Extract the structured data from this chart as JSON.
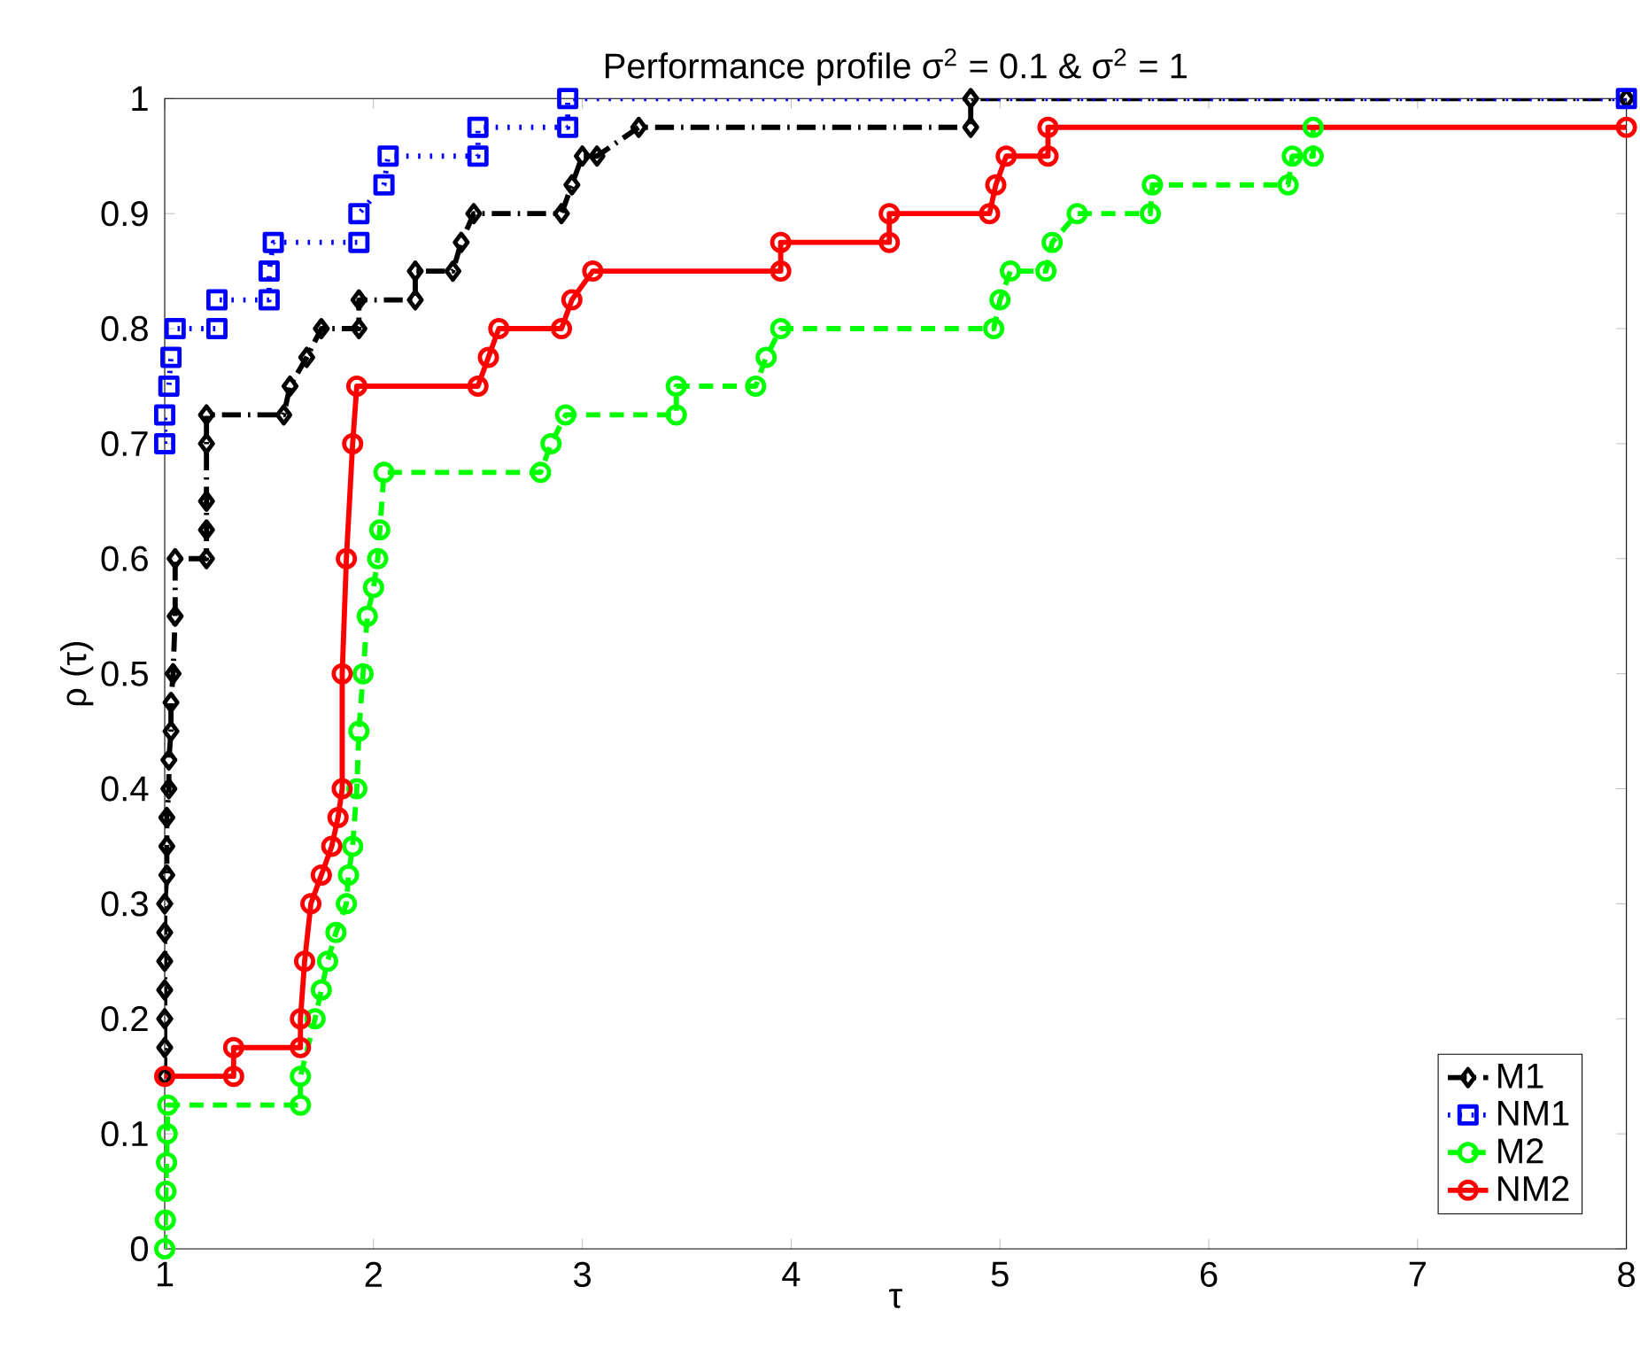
{
  "chart_data": {
    "type": "line",
    "title": "Performance profile σ$^{2}$ = 0.1 & σ$^{2}$ = 1",
    "xlabel": "τ",
    "ylabel": "ρ (τ)",
    "xlim": [
      1,
      8
    ],
    "ylim": [
      0,
      1
    ],
    "xticks": [
      1,
      2,
      3,
      4,
      5,
      6,
      7,
      8
    ],
    "yticks": [
      0,
      0.1,
      0.2,
      0.3,
      0.4,
      0.5,
      0.6,
      0.7,
      0.8,
      0.9,
      1
    ],
    "legend": "bottom right",
    "grid": false,
    "series": [
      {
        "name": "M1",
        "color": "#000000",
        "marker": "diamond",
        "line_style": "dashdot",
        "x": [
          1.0,
          1.0,
          1.0,
          1.0,
          1.0,
          1.0,
          1.0,
          1.01,
          1.01,
          1.01,
          1.02,
          1.02,
          1.03,
          1.03,
          1.04,
          1.05,
          1.05,
          1.2,
          1.2,
          1.2,
          1.2,
          1.2,
          1.57,
          1.6,
          1.68,
          1.75,
          1.93,
          1.93,
          2.2,
          2.2,
          2.38,
          2.42,
          2.48,
          2.9,
          2.95,
          3.0,
          3.07,
          3.27,
          4.86,
          4.86,
          8
        ],
        "values": [
          0.15,
          0.175,
          0.2,
          0.225,
          0.25,
          0.275,
          0.3,
          0.325,
          0.35,
          0.375,
          0.4,
          0.425,
          0.45,
          0.475,
          0.5,
          0.55,
          0.6,
          0.6,
          0.625,
          0.65,
          0.7,
          0.725,
          0.725,
          0.75,
          0.775,
          0.8,
          0.8,
          0.825,
          0.825,
          0.85,
          0.85,
          0.875,
          0.9,
          0.9,
          0.925,
          0.95,
          0.95,
          0.975,
          0.975,
          1,
          1
        ]
      },
      {
        "name": "NM1",
        "color": "#0000ff",
        "marker": "square",
        "line_style": "dotted",
        "x": [
          1.0,
          1.0,
          1.02,
          1.03,
          1.05,
          1.25,
          1.25,
          1.5,
          1.5,
          1.52,
          1.93,
          1.93,
          2.05,
          2.07,
          2.5,
          2.5,
          2.93,
          2.93,
          8
        ],
        "values": [
          0.7,
          0.725,
          0.75,
          0.775,
          0.8,
          0.8,
          0.825,
          0.825,
          0.85,
          0.875,
          0.875,
          0.9,
          0.925,
          0.95,
          0.95,
          0.975,
          0.975,
          1,
          1
        ]
      },
      {
        "name": "M2",
        "color": "#00ff00",
        "marker": "circle",
        "line_style": "dashed",
        "x": [
          1.0,
          1.003,
          1.006,
          1.009,
          1.012,
          1.015,
          1.65,
          1.65,
          1.72,
          1.75,
          1.78,
          1.82,
          1.87,
          1.88,
          1.9,
          1.92,
          1.93,
          1.95,
          1.97,
          2.0,
          2.02,
          2.03,
          2.05,
          2.8,
          2.85,
          2.92,
          3.45,
          3.45,
          3.83,
          3.88,
          3.95,
          4.97,
          5.0,
          5.05,
          5.22,
          5.25,
          5.37,
          5.72,
          5.73,
          6.38,
          6.4,
          6.5,
          6.5
        ],
        "values": [
          0,
          0.025,
          0.05,
          0.075,
          0.1,
          0.125,
          0.125,
          0.15,
          0.2,
          0.225,
          0.25,
          0.275,
          0.3,
          0.325,
          0.35,
          0.4,
          0.45,
          0.5,
          0.55,
          0.575,
          0.6,
          0.625,
          0.675,
          0.675,
          0.7,
          0.725,
          0.725,
          0.75,
          0.75,
          0.775,
          0.8,
          0.8,
          0.825,
          0.85,
          0.85,
          0.875,
          0.9,
          0.9,
          0.925,
          0.925,
          0.95,
          0.95,
          0.975
        ]
      },
      {
        "name": "NM2",
        "color": "#ff0000",
        "marker": "circle",
        "line_style": "solid",
        "x": [
          1.0,
          1.33,
          1.33,
          1.65,
          1.65,
          1.67,
          1.7,
          1.75,
          1.8,
          1.83,
          1.85,
          1.85,
          1.87,
          1.9,
          1.92,
          2.5,
          2.55,
          2.6,
          2.9,
          2.95,
          3.05,
          3.95,
          3.95,
          4.47,
          4.47,
          4.95,
          4.98,
          5.03,
          5.23,
          5.23,
          8
        ],
        "values": [
          0.15,
          0.15,
          0.175,
          0.175,
          0.2,
          0.25,
          0.3,
          0.325,
          0.35,
          0.375,
          0.4,
          0.5,
          0.6,
          0.7,
          0.75,
          0.75,
          0.775,
          0.8,
          0.8,
          0.825,
          0.85,
          0.85,
          0.875,
          0.875,
          0.9,
          0.9,
          0.925,
          0.95,
          0.95,
          0.975,
          0.975
        ]
      }
    ]
  }
}
